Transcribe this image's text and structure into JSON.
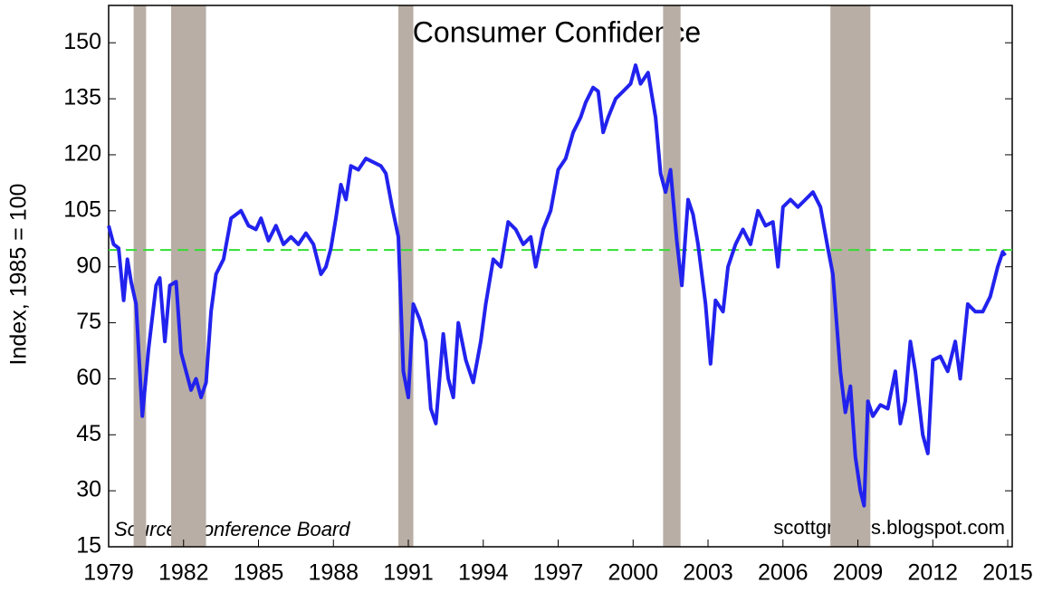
{
  "chart_data": {
    "type": "line",
    "title": "Consumer Confidence",
    "y_label": "Index, 1985 = 100",
    "annotations": [
      "Source:  Conference Board",
      "scottgrannis.blogspot.com"
    ],
    "xlim": [
      1979,
      2015.18
    ],
    "xticks": [
      1979,
      1982,
      1985,
      1988,
      1991,
      1994,
      1997,
      2000,
      2003,
      2006,
      2009,
      2012,
      2015
    ],
    "ylim": [
      15,
      160
    ],
    "yticks": [
      15,
      30,
      45,
      60,
      75,
      90,
      105,
      120,
      135,
      150
    ],
    "recessions": [
      [
        1980.0,
        1980.5
      ],
      [
        1981.5,
        1982.9
      ],
      [
        1990.6,
        1991.2
      ],
      [
        2001.2,
        2001.9
      ],
      [
        2007.9,
        2009.5
      ]
    ],
    "recession_color": "#b9aea5",
    "reference_line": {
      "value": 94.5,
      "color": "#33dd33"
    },
    "series": [
      {
        "color": "#2222ee",
        "x": [
          1979.0,
          1979.2,
          1979.4,
          1979.6,
          1979.75,
          1979.9,
          1980.1,
          1980.35,
          1980.6,
          1980.9,
          1981.05,
          1981.25,
          1981.45,
          1981.7,
          1981.9,
          1982.1,
          1982.3,
          1982.5,
          1982.7,
          1982.9,
          1983.1,
          1983.3,
          1983.6,
          1983.9,
          1984.1,
          1984.3,
          1984.6,
          1984.9,
          1985.1,
          1985.4,
          1985.7,
          1986.0,
          1986.3,
          1986.6,
          1986.9,
          1987.2,
          1987.5,
          1987.7,
          1987.9,
          1988.1,
          1988.3,
          1988.5,
          1988.7,
          1989.0,
          1989.3,
          1989.6,
          1989.9,
          1990.1,
          1990.35,
          1990.6,
          1990.8,
          1991.0,
          1991.2,
          1991.45,
          1991.7,
          1991.9,
          1992.1,
          1992.4,
          1992.6,
          1992.8,
          1993.0,
          1993.3,
          1993.6,
          1993.9,
          1994.1,
          1994.4,
          1994.7,
          1995.0,
          1995.3,
          1995.6,
          1995.9,
          1996.1,
          1996.4,
          1996.7,
          1997.0,
          1997.3,
          1997.6,
          1997.9,
          1998.1,
          1998.4,
          1998.6,
          1998.8,
          1999.0,
          1999.3,
          1999.6,
          1999.9,
          2000.1,
          2000.3,
          2000.6,
          2000.9,
          2001.1,
          2001.3,
          2001.5,
          2001.75,
          2001.95,
          2002.2,
          2002.4,
          2002.6,
          2002.9,
          2003.1,
          2003.3,
          2003.6,
          2003.8,
          2004.1,
          2004.4,
          2004.7,
          2005.0,
          2005.3,
          2005.6,
          2005.8,
          2006.0,
          2006.3,
          2006.6,
          2006.9,
          2007.2,
          2007.5,
          2007.8,
          2008.0,
          2008.3,
          2008.5,
          2008.7,
          2008.9,
          2009.1,
          2009.25,
          2009.4,
          2009.6,
          2009.9,
          2010.2,
          2010.5,
          2010.7,
          2010.9,
          2011.1,
          2011.3,
          2011.6,
          2011.8,
          2012.0,
          2012.3,
          2012.6,
          2012.9,
          2013.1,
          2013.4,
          2013.7,
          2014.0,
          2014.3,
          2014.6,
          2014.8,
          2014.9
        ],
        "values": [
          101,
          96,
          95,
          81,
          92,
          86,
          80,
          50,
          68,
          85,
          87,
          70,
          85,
          86,
          67,
          62,
          57,
          60,
          55,
          59,
          78,
          88,
          92,
          103,
          104,
          105,
          101,
          100,
          103,
          97,
          101,
          96,
          98,
          96,
          99,
          96,
          88,
          90,
          95,
          103,
          112,
          108,
          117,
          116,
          119,
          118,
          117,
          115,
          106,
          98,
          62,
          55,
          80,
          76,
          70,
          52,
          48,
          72,
          60,
          55,
          75,
          65,
          59,
          70,
          80,
          92,
          90,
          102,
          100,
          96,
          98,
          90,
          100,
          105,
          116,
          119,
          126,
          130,
          134,
          138,
          137,
          126,
          130,
          135,
          137,
          139,
          144,
          139,
          142,
          130,
          115,
          110,
          116,
          97,
          85,
          108,
          104,
          96,
          80,
          64,
          81,
          78,
          90,
          96,
          100,
          96,
          105,
          101,
          102,
          90,
          106,
          108,
          106,
          108,
          110,
          106,
          95,
          88,
          62,
          51,
          58,
          39,
          30,
          26,
          54,
          50,
          53,
          52,
          62,
          48,
          54,
          70,
          62,
          45,
          40,
          65,
          66,
          62,
          70,
          60,
          80,
          78,
          78,
          82,
          90,
          94,
          93
        ]
      }
    ]
  }
}
